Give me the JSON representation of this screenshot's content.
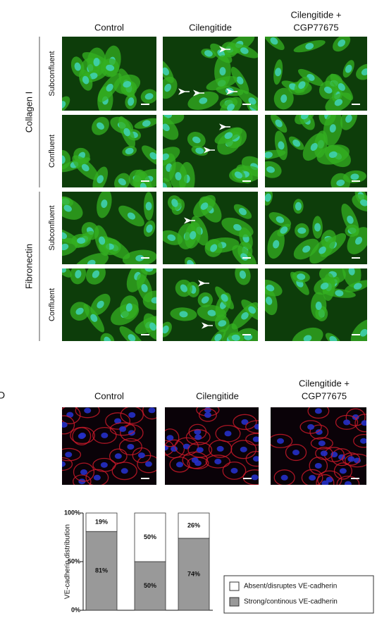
{
  "panel_c": {
    "column_headers": [
      [
        "Control"
      ],
      [
        "Cilengitide"
      ],
      [
        "Cilengitide +",
        "CGP77675"
      ]
    ],
    "row_groups": [
      {
        "label": "Collagen I",
        "rows": [
          "Subconfluent",
          "Confluent"
        ]
      },
      {
        "label": "Fibronectin",
        "rows": [
          "Subconfluent",
          "Confluent"
        ]
      }
    ]
  },
  "panel_d": {
    "label": "D",
    "column_headers": [
      [
        "Control"
      ],
      [
        "Cilengitide"
      ],
      [
        "Cilengitide +",
        "CGP77675"
      ]
    ]
  },
  "chart_data": {
    "type": "bar",
    "stacked": true,
    "y_label": "VE-cadherin distribution",
    "categories": [
      null,
      null,
      null
    ],
    "series": [
      {
        "name": "Absent/disruptes VE-cadherin",
        "color": "#ffffff",
        "values": [
          19,
          50,
          26
        ],
        "value_labels": [
          "19%",
          "50%",
          "26%"
        ]
      },
      {
        "name": "Strong/continous VE-cadherin",
        "color": "#999999",
        "values": [
          81,
          50,
          74
        ],
        "value_labels": [
          "81%",
          "50%",
          "74%"
        ]
      }
    ],
    "ylim": [
      0,
      100
    ],
    "yticks": [
      {
        "value": 0,
        "label": "0%"
      },
      {
        "value": 50,
        "label": "50%"
      },
      {
        "value": 100,
        "label": "100%"
      }
    ],
    "legend": "bottom-right"
  }
}
